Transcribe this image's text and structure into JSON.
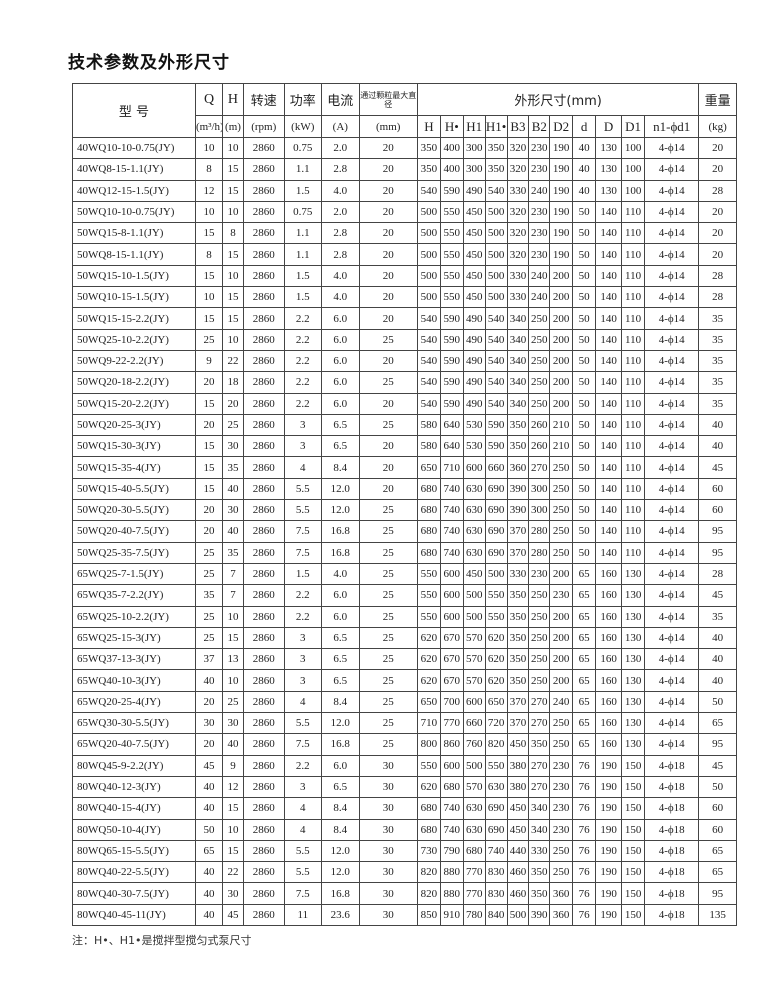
{
  "title": "技术参数及外形尺寸",
  "header": {
    "model": "型 号",
    "q": "Q",
    "h": "H",
    "speed": "转速",
    "power": "功率",
    "current": "电流",
    "particle": "通过颗粒最大直径",
    "dimensions": "外形尺寸(mm)",
    "weight": "重量",
    "units": {
      "q": "(m³/h)",
      "h": "(m)",
      "speed": "(rpm)",
      "power": "(kW)",
      "current": "(A)",
      "particle": "(mm)",
      "weight": "(kg)"
    },
    "dim_cols": [
      "H",
      "H•",
      "H1",
      "H1•",
      "B3",
      "B2",
      "D2",
      "d",
      "D",
      "D1",
      "n1-ϕd1"
    ]
  },
  "rows": [
    [
      "40WQ10-10-0.75(JY)",
      "10",
      "10",
      "2860",
      "0.75",
      "2.0",
      "20",
      "350",
      "400",
      "300",
      "350",
      "320",
      "230",
      "190",
      "40",
      "130",
      "100",
      "4-ϕ14",
      "20"
    ],
    [
      "40WQ8-15-1.1(JY)",
      "8",
      "15",
      "2860",
      "1.1",
      "2.8",
      "20",
      "350",
      "400",
      "300",
      "350",
      "320",
      "230",
      "190",
      "40",
      "130",
      "100",
      "4-ϕ14",
      "20"
    ],
    [
      "40WQ12-15-1.5(JY)",
      "12",
      "15",
      "2860",
      "1.5",
      "4.0",
      "20",
      "540",
      "590",
      "490",
      "540",
      "330",
      "240",
      "190",
      "40",
      "130",
      "100",
      "4-ϕ14",
      "28"
    ],
    [
      "50WQ10-10-0.75(JY)",
      "10",
      "10",
      "2860",
      "0.75",
      "2.0",
      "20",
      "500",
      "550",
      "450",
      "500",
      "320",
      "230",
      "190",
      "50",
      "140",
      "110",
      "4-ϕ14",
      "20"
    ],
    [
      "50WQ15-8-1.1(JY)",
      "15",
      "8",
      "2860",
      "1.1",
      "2.8",
      "20",
      "500",
      "550",
      "450",
      "500",
      "320",
      "230",
      "190",
      "50",
      "140",
      "110",
      "4-ϕ14",
      "20"
    ],
    [
      "50WQ8-15-1.1(JY)",
      "8",
      "15",
      "2860",
      "1.1",
      "2.8",
      "20",
      "500",
      "550",
      "450",
      "500",
      "320",
      "230",
      "190",
      "50",
      "140",
      "110",
      "4-ϕ14",
      "20"
    ],
    [
      "50WQ15-10-1.5(JY)",
      "15",
      "10",
      "2860",
      "1.5",
      "4.0",
      "20",
      "500",
      "550",
      "450",
      "500",
      "330",
      "240",
      "200",
      "50",
      "140",
      "110",
      "4-ϕ14",
      "28"
    ],
    [
      "50WQ10-15-1.5(JY)",
      "10",
      "15",
      "2860",
      "1.5",
      "4.0",
      "20",
      "500",
      "550",
      "450",
      "500",
      "330",
      "240",
      "200",
      "50",
      "140",
      "110",
      "4-ϕ14",
      "28"
    ],
    [
      "50WQ15-15-2.2(JY)",
      "15",
      "15",
      "2860",
      "2.2",
      "6.0",
      "20",
      "540",
      "590",
      "490",
      "540",
      "340",
      "250",
      "200",
      "50",
      "140",
      "110",
      "4-ϕ14",
      "35"
    ],
    [
      "50WQ25-10-2.2(JY)",
      "25",
      "10",
      "2860",
      "2.2",
      "6.0",
      "25",
      "540",
      "590",
      "490",
      "540",
      "340",
      "250",
      "200",
      "50",
      "140",
      "110",
      "4-ϕ14",
      "35"
    ],
    [
      "50WQ9-22-2.2(JY)",
      "9",
      "22",
      "2860",
      "2.2",
      "6.0",
      "20",
      "540",
      "590",
      "490",
      "540",
      "340",
      "250",
      "200",
      "50",
      "140",
      "110",
      "4-ϕ14",
      "35"
    ],
    [
      "50WQ20-18-2.2(JY)",
      "20",
      "18",
      "2860",
      "2.2",
      "6.0",
      "25",
      "540",
      "590",
      "490",
      "540",
      "340",
      "250",
      "200",
      "50",
      "140",
      "110",
      "4-ϕ14",
      "35"
    ],
    [
      "50WQ15-20-2.2(JY)",
      "15",
      "20",
      "2860",
      "2.2",
      "6.0",
      "20",
      "540",
      "590",
      "490",
      "540",
      "340",
      "250",
      "200",
      "50",
      "140",
      "110",
      "4-ϕ14",
      "35"
    ],
    [
      "50WQ20-25-3(JY)",
      "20",
      "25",
      "2860",
      "3",
      "6.5",
      "25",
      "580",
      "640",
      "530",
      "590",
      "350",
      "260",
      "210",
      "50",
      "140",
      "110",
      "4-ϕ14",
      "40"
    ],
    [
      "50WQ15-30-3(JY)",
      "15",
      "30",
      "2860",
      "3",
      "6.5",
      "20",
      "580",
      "640",
      "530",
      "590",
      "350",
      "260",
      "210",
      "50",
      "140",
      "110",
      "4-ϕ14",
      "40"
    ],
    [
      "50WQ15-35-4(JY)",
      "15",
      "35",
      "2860",
      "4",
      "8.4",
      "20",
      "650",
      "710",
      "600",
      "660",
      "360",
      "270",
      "250",
      "50",
      "140",
      "110",
      "4-ϕ14",
      "45"
    ],
    [
      "50WQ15-40-5.5(JY)",
      "15",
      "40",
      "2860",
      "5.5",
      "12.0",
      "20",
      "680",
      "740",
      "630",
      "690",
      "390",
      "300",
      "250",
      "50",
      "140",
      "110",
      "4-ϕ14",
      "60"
    ],
    [
      "50WQ20-30-5.5(JY)",
      "20",
      "30",
      "2860",
      "5.5",
      "12.0",
      "25",
      "680",
      "740",
      "630",
      "690",
      "390",
      "300",
      "250",
      "50",
      "140",
      "110",
      "4-ϕ14",
      "60"
    ],
    [
      "50WQ20-40-7.5(JY)",
      "20",
      "40",
      "2860",
      "7.5",
      "16.8",
      "25",
      "680",
      "740",
      "630",
      "690",
      "370",
      "280",
      "250",
      "50",
      "140",
      "110",
      "4-ϕ14",
      "95"
    ],
    [
      "50WQ25-35-7.5(JY)",
      "25",
      "35",
      "2860",
      "7.5",
      "16.8",
      "25",
      "680",
      "740",
      "630",
      "690",
      "370",
      "280",
      "250",
      "50",
      "140",
      "110",
      "4-ϕ14",
      "95"
    ],
    [
      "65WQ25-7-1.5(JY)",
      "25",
      "7",
      "2860",
      "1.5",
      "4.0",
      "25",
      "550",
      "600",
      "450",
      "500",
      "330",
      "230",
      "200",
      "65",
      "160",
      "130",
      "4-ϕ14",
      "28"
    ],
    [
      "65WQ35-7-2.2(JY)",
      "35",
      "7",
      "2860",
      "2.2",
      "6.0",
      "25",
      "550",
      "600",
      "500",
      "550",
      "350",
      "250",
      "230",
      "65",
      "160",
      "130",
      "4-ϕ14",
      "45"
    ],
    [
      "65WQ25-10-2.2(JY)",
      "25",
      "10",
      "2860",
      "2.2",
      "6.0",
      "25",
      "550",
      "600",
      "500",
      "550",
      "350",
      "250",
      "200",
      "65",
      "160",
      "130",
      "4-ϕ14",
      "35"
    ],
    [
      "65WQ25-15-3(JY)",
      "25",
      "15",
      "2860",
      "3",
      "6.5",
      "25",
      "620",
      "670",
      "570",
      "620",
      "350",
      "250",
      "200",
      "65",
      "160",
      "130",
      "4-ϕ14",
      "40"
    ],
    [
      "65WQ37-13-3(JY)",
      "37",
      "13",
      "2860",
      "3",
      "6.5",
      "25",
      "620",
      "670",
      "570",
      "620",
      "350",
      "250",
      "200",
      "65",
      "160",
      "130",
      "4-ϕ14",
      "40"
    ],
    [
      "65WQ40-10-3(JY)",
      "40",
      "10",
      "2860",
      "3",
      "6.5",
      "25",
      "620",
      "670",
      "570",
      "620",
      "350",
      "250",
      "200",
      "65",
      "160",
      "130",
      "4-ϕ14",
      "40"
    ],
    [
      "65WQ20-25-4(JY)",
      "20",
      "25",
      "2860",
      "4",
      "8.4",
      "25",
      "650",
      "700",
      "600",
      "650",
      "370",
      "270",
      "240",
      "65",
      "160",
      "130",
      "4-ϕ14",
      "50"
    ],
    [
      "65WQ30-30-5.5(JY)",
      "30",
      "30",
      "2860",
      "5.5",
      "12.0",
      "25",
      "710",
      "770",
      "660",
      "720",
      "370",
      "270",
      "250",
      "65",
      "160",
      "130",
      "4-ϕ14",
      "65"
    ],
    [
      "65WQ20-40-7.5(JY)",
      "20",
      "40",
      "2860",
      "7.5",
      "16.8",
      "25",
      "800",
      "860",
      "760",
      "820",
      "450",
      "350",
      "250",
      "65",
      "160",
      "130",
      "4-ϕ14",
      "95"
    ],
    [
      "80WQ45-9-2.2(JY)",
      "45",
      "9",
      "2860",
      "2.2",
      "6.0",
      "30",
      "550",
      "600",
      "500",
      "550",
      "380",
      "270",
      "230",
      "76",
      "190",
      "150",
      "4-ϕ18",
      "45"
    ],
    [
      "80WQ40-12-3(JY)",
      "40",
      "12",
      "2860",
      "3",
      "6.5",
      "30",
      "620",
      "680",
      "570",
      "630",
      "380",
      "270",
      "230",
      "76",
      "190",
      "150",
      "4-ϕ18",
      "50"
    ],
    [
      "80WQ40-15-4(JY)",
      "40",
      "15",
      "2860",
      "4",
      "8.4",
      "30",
      "680",
      "740",
      "630",
      "690",
      "450",
      "340",
      "230",
      "76",
      "190",
      "150",
      "4-ϕ18",
      "60"
    ],
    [
      "80WQ50-10-4(JY)",
      "50",
      "10",
      "2860",
      "4",
      "8.4",
      "30",
      "680",
      "740",
      "630",
      "690",
      "450",
      "340",
      "230",
      "76",
      "190",
      "150",
      "4-ϕ18",
      "60"
    ],
    [
      "80WQ65-15-5.5(JY)",
      "65",
      "15",
      "2860",
      "5.5",
      "12.0",
      "30",
      "730",
      "790",
      "680",
      "740",
      "440",
      "330",
      "250",
      "76",
      "190",
      "150",
      "4-ϕ18",
      "65"
    ],
    [
      "80WQ40-22-5.5(JY)",
      "40",
      "22",
      "2860",
      "5.5",
      "12.0",
      "30",
      "820",
      "880",
      "770",
      "830",
      "460",
      "350",
      "250",
      "76",
      "190",
      "150",
      "4-ϕ18",
      "65"
    ],
    [
      "80WQ40-30-7.5(JY)",
      "40",
      "30",
      "2860",
      "7.5",
      "16.8",
      "30",
      "820",
      "880",
      "770",
      "830",
      "460",
      "350",
      "360",
      "76",
      "190",
      "150",
      "4-ϕ18",
      "95"
    ],
    [
      "80WQ40-45-11(JY)",
      "40",
      "45",
      "2860",
      "11",
      "23.6",
      "30",
      "850",
      "910",
      "780",
      "840",
      "500",
      "390",
      "360",
      "76",
      "190",
      "150",
      "4-ϕ18",
      "135"
    ]
  ],
  "note": "注：H•、H1•是搅拌型搅匀式泵尺寸"
}
